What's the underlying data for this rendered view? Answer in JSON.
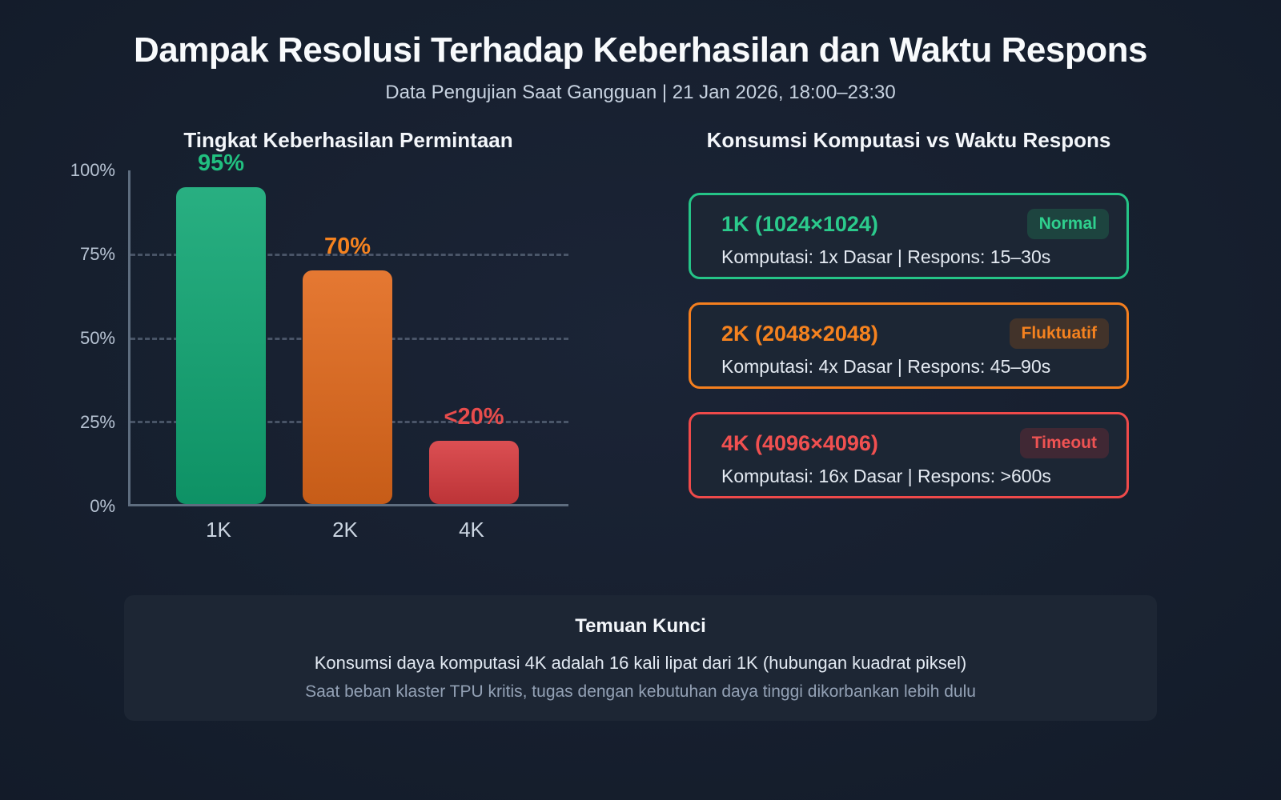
{
  "header": {
    "title": "Dampak Resolusi Terhadap Keberhasilan dan Waktu Respons",
    "subtitle": "Data Pengujian Saat Gangguan | 21 Jan 2026, 18:00–23:30"
  },
  "chart_data": {
    "type": "bar",
    "title": "Tingkat Keberhasilan Permintaan",
    "categories": [
      "1K",
      "2K",
      "4K"
    ],
    "values": [
      95,
      70,
      19
    ],
    "value_labels": [
      "95%",
      "70%",
      "<20%"
    ],
    "bar_colors": [
      "#10a673",
      "#e2691b",
      "#d73b3f"
    ],
    "label_colors": [
      "#21c080",
      "#f5821f",
      "#e84c4c"
    ],
    "xlabel": "",
    "ylabel": "",
    "ylim": [
      0,
      100
    ],
    "yticks": [
      "100%",
      "75%",
      "50%",
      "25%",
      "0%"
    ],
    "ytick_positions_pct": [
      100,
      75,
      50,
      25,
      0
    ],
    "gridlines_at_pct": [
      75,
      50,
      25
    ],
    "grid_style": "dashed",
    "legend": "none"
  },
  "right_panel": {
    "title": "Konsumsi Komputasi vs Waktu Respons",
    "cards": [
      {
        "title": "1K (1024×1024)",
        "badge": "Normal",
        "detail": "Komputasi: 1x Dasar | Respons: 15–30s",
        "accent": "#25c487",
        "title_color": "#2bca8c",
        "badge_bg": "#1d443f",
        "badge_color": "#2fd08e"
      },
      {
        "title": "2K (2048×2048)",
        "badge": "Fluktuatif",
        "detail": "Komputasi: 4x Dasar | Respons: 45–90s",
        "accent": "#f57f1e",
        "title_color": "#f5821f",
        "badge_bg": "#42332a",
        "badge_color": "#f5821f"
      },
      {
        "title": "4K (4096×4096)",
        "badge": "Timeout",
        "detail": "Komputasi: 16x Dasar | Respons: >600s",
        "accent": "#ef4a4a",
        "title_color": "#f05050",
        "badge_bg": "#402834",
        "badge_color": "#ef5353"
      }
    ]
  },
  "key_findings": {
    "title": "Temuan Kunci",
    "line1": "Konsumsi daya komputasi 4K adalah 16 kali lipat dari 1K (hubungan kuadrat piksel)",
    "line2": "Saat beban klaster TPU kritis, tugas dengan kebutuhan daya tinggi dikorbankan lebih dulu"
  }
}
